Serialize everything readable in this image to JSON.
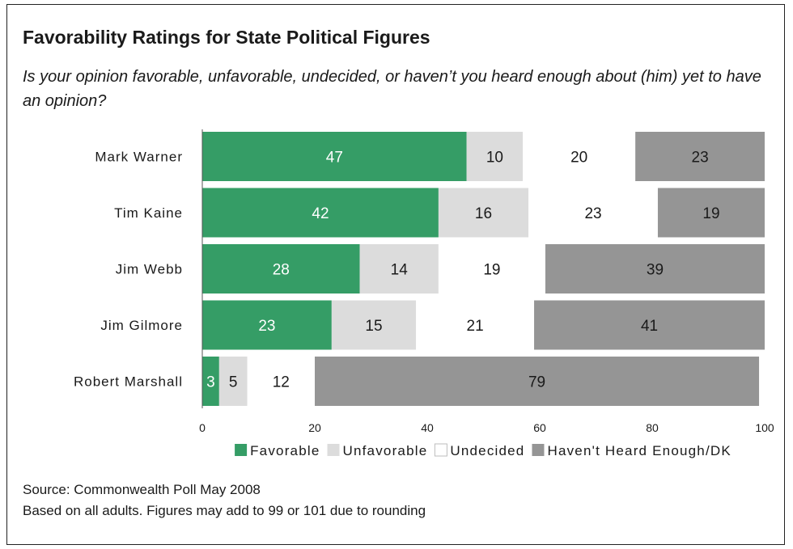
{
  "title": "Favorability Ratings for State Political Figures",
  "subtitle": "Is your opinion favorable, unfavorable, undecided, or haven’t you heard enough about (him) yet to have an opinion?",
  "chart_data": {
    "type": "bar",
    "orientation": "horizontal",
    "stacked": true,
    "categories": [
      "Mark Warner",
      "Tim Kaine",
      "Jim Webb",
      "Jim Gilmore",
      "Robert Marshall"
    ],
    "series": [
      {
        "name": "Favorable",
        "color": "#359d66",
        "label_color": "#ffffff",
        "values": [
          47,
          42,
          28,
          23,
          3
        ]
      },
      {
        "name": "Unfavorable",
        "color": "#dcdcdc",
        "label_color": "#1a1a1a",
        "values": [
          10,
          16,
          14,
          15,
          5
        ]
      },
      {
        "name": "Undecided",
        "color": "#ffffff",
        "label_color": "#1a1a1a",
        "values": [
          20,
          23,
          19,
          21,
          12
        ]
      },
      {
        "name": "Haven't Heard Enough/DK",
        "color": "#959595",
        "label_color": "#1a1a1a",
        "values": [
          23,
          19,
          39,
          41,
          79
        ]
      }
    ],
    "xlim": [
      0,
      100
    ],
    "xticks": [
      0,
      20,
      40,
      60,
      80,
      100
    ],
    "legend_position": "bottom",
    "grid": false
  },
  "footer": {
    "source": "Source: Commonwealth Poll May 2008",
    "note": "Based on all adults. Figures may add to 99 or 101 due to rounding"
  }
}
